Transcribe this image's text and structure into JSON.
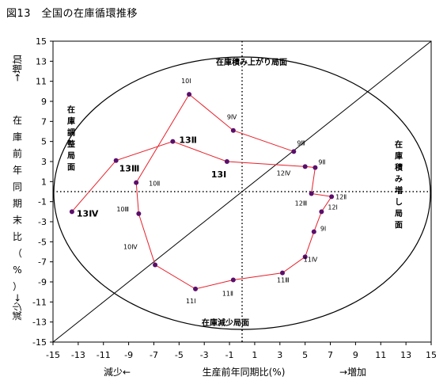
{
  "title": "図13　全国の在庫循環推移",
  "chart_data": {
    "type": "scatter",
    "connected": true,
    "xlabel": "生産前年同期比(%)",
    "ylabel_vertical": "在庫前年同期末比（%）",
    "xlim": [
      -15,
      15
    ],
    "ylim": [
      -15,
      15
    ],
    "x_ticks": [
      -15,
      -13,
      -11,
      -9,
      -7,
      -5,
      -3,
      -1,
      1,
      3,
      5,
      7,
      9,
      11,
      13,
      15
    ],
    "y_ticks": [
      15,
      13,
      11,
      9,
      7,
      5,
      3,
      1,
      -1,
      -3,
      -5,
      -7,
      -9,
      -11,
      -13,
      -15
    ],
    "x_left_note": "減少←",
    "x_right_note": "→増加",
    "y_top_note": "→増加",
    "y_bottom_note": "減少←",
    "region_labels": {
      "top": "在庫積み上がり局面",
      "bottom": "在庫減少局面",
      "left": "在庫調整局面",
      "right": "在庫積み増し局面"
    },
    "diagonal_line": true,
    "reference_lines": {
      "x": 0,
      "y": 0,
      "style": "dotted"
    },
    "colors": {
      "line": "#e8202a",
      "marker": "#5a0f6b",
      "text": "#000000"
    },
    "points": [
      {
        "label": "9Ⅲ",
        "x": 4.1,
        "y": 4.0
      },
      {
        "label": "9Ⅳ",
        "x": -0.7,
        "y": 6.1
      },
      {
        "label": "10Ⅰ",
        "x": -4.2,
        "y": 9.7
      },
      {
        "label": "10Ⅱ",
        "x": -8.4,
        "y": 0.9
      },
      {
        "label": "10Ⅲ",
        "x": -8.2,
        "y": -2.2
      },
      {
        "label": "10Ⅳ",
        "x": -6.9,
        "y": -7.3
      },
      {
        "label": "11Ⅰ",
        "x": -3.7,
        "y": -9.7
      },
      {
        "label": "11Ⅱ",
        "x": -0.7,
        "y": -8.8
      },
      {
        "label": "11Ⅲ",
        "x": 3.2,
        "y": -8.1
      },
      {
        "label": "11Ⅳ",
        "x": 5.0,
        "y": -6.5
      },
      {
        "label": "9Ⅰ",
        "x": 5.7,
        "y": -4.0
      },
      {
        "label": "12Ⅰ",
        "x": 6.3,
        "y": -2.0
      },
      {
        "label": "12Ⅱ",
        "x": 7.1,
        "y": -0.5
      },
      {
        "label": "12Ⅲ",
        "x": 5.5,
        "y": -0.2
      },
      {
        "label": "9Ⅱ",
        "x": 5.8,
        "y": 2.4
      },
      {
        "label": "12Ⅳ",
        "x": 5.0,
        "y": 2.5
      },
      {
        "label": "13Ⅰ",
        "x": -1.2,
        "y": 3.0
      },
      {
        "label": "13Ⅱ",
        "x": -5.5,
        "y": 5.0
      },
      {
        "label": "13Ⅲ",
        "x": -10.0,
        "y": 3.1
      },
      {
        "label": "13Ⅳ",
        "x": -13.5,
        "y": -2.0
      }
    ]
  }
}
